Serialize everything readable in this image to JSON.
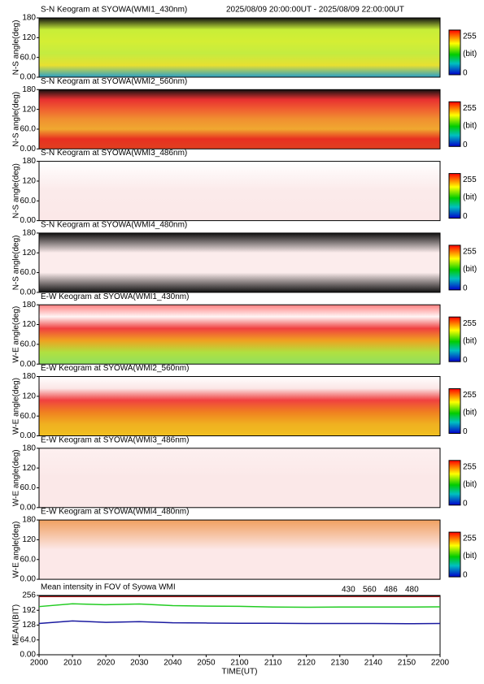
{
  "header": "2025/08/09 20:00:00UT - 2025/08/09 22:00:00UT",
  "keograms": [
    {
      "title": "S-N Keogram at SYOWA(WMI1_430nm)",
      "ylabel": "N-S angle(deg)",
      "ylim": [
        0,
        180
      ],
      "yticks": [
        {
          "value": 0,
          "label": "0.00"
        },
        {
          "value": 60,
          "label": "60.0"
        },
        120,
        180
      ],
      "colorbar": {
        "min": 0,
        "max": 255,
        "unit": "(bit)"
      },
      "gradient": [
        "#111111",
        "#c8ee38",
        "#d4ee34",
        "#c4ec40",
        "#e8e030",
        "#2aa0c8"
      ]
    },
    {
      "title": "S-N Keogram at SYOWA(WMI2_560nm)",
      "ylabel": "N-S angle(deg)",
      "ylim": [
        0,
        180
      ],
      "yticks": [
        {
          "value": 0,
          "label": "0.00"
        },
        {
          "value": 60,
          "label": "60.0"
        },
        120,
        180
      ],
      "colorbar": {
        "min": 0,
        "max": 255,
        "unit": "(bit)"
      },
      "gradient": [
        "#111111",
        "#e83030",
        "#f06030",
        "#f09030",
        "#f0a830",
        "#e83020",
        "#e04020"
      ]
    },
    {
      "title": "S-N Keogram at SYOWA(WMI3_486nm)",
      "ylabel": "N-S angle(deg)",
      "ylim": [
        0,
        180
      ],
      "yticks": [
        {
          "value": 0,
          "label": "0.00"
        },
        {
          "value": 60,
          "label": "60.0"
        },
        120,
        180
      ],
      "colorbar": {
        "min": 0,
        "max": 255,
        "unit": "(bit)"
      },
      "gradient": [
        "#ffffff",
        "#fbeaea",
        "#fbe8e8"
      ]
    },
    {
      "title": "S-N Keogram at SYOWA(WMI4_480nm)",
      "ylabel": "N-S angle(deg)",
      "ylim": [
        0,
        180
      ],
      "yticks": [
        {
          "value": 0,
          "label": "0.00"
        },
        {
          "value": 60,
          "label": "60.0"
        },
        120,
        180
      ],
      "colorbar": {
        "min": 0,
        "max": 255,
        "unit": "(bit)"
      },
      "gradient": [
        "#111111",
        "#fcecec",
        "#fcecec",
        "#111111"
      ]
    },
    {
      "title": "E-W Keogram at SYOWA(WMI1_430nm)",
      "ylabel": "W-E angle(deg)",
      "ylim": [
        0,
        180
      ],
      "yticks": [
        {
          "value": 0,
          "label": "0.00"
        },
        {
          "value": 60,
          "label": "60.0"
        },
        120,
        180
      ],
      "colorbar": {
        "min": 0,
        "max": 255,
        "unit": "(bit)"
      },
      "gradient": [
        "#ff8080",
        "#fff5f5",
        "#f04040",
        "#f0a020",
        "#b0e040",
        "#90e060"
      ]
    },
    {
      "title": "E-W Keogram at SYOWA(WMI2_560nm)",
      "ylabel": "W-E angle(deg)",
      "ylim": [
        0,
        180
      ],
      "yticks": [
        {
          "value": 0,
          "label": "0.00"
        },
        {
          "value": 60,
          "label": "60.0"
        },
        120,
        180
      ],
      "colorbar": {
        "min": 0,
        "max": 255,
        "unit": "(bit)"
      },
      "gradient": [
        "#ffffff",
        "#fbe6e6",
        "#f04040",
        "#f08020",
        "#f0b020",
        "#f0c020"
      ]
    },
    {
      "title": "E-W Keogram at SYOWA(WMI3_486nm)",
      "ylabel": "W-E angle(deg)",
      "ylim": [
        0,
        180
      ],
      "yticks": [
        {
          "value": 0,
          "label": "0.00"
        },
        {
          "value": 60,
          "label": "60.0"
        },
        120,
        180
      ],
      "colorbar": {
        "min": 0,
        "max": 255,
        "unit": "(bit)"
      },
      "gradient": [
        "#fdf0f0",
        "#fbe8e8",
        "#fbe8e8"
      ]
    },
    {
      "title": "E-W Keogram at SYOWA(WMI4_480nm)",
      "ylabel": "W-E angle(deg)",
      "ylim": [
        0,
        180
      ],
      "yticks": [
        {
          "value": 0,
          "label": "0.00"
        },
        {
          "value": 60,
          "label": "60.0"
        },
        120,
        180
      ],
      "colorbar": {
        "min": 0,
        "max": 255,
        "unit": "(bit)"
      },
      "gradient": [
        "#f0a060",
        "#fce8e8",
        "#fce8e8"
      ]
    }
  ],
  "chart_data": {
    "type": "line",
    "title": "Mean intensity in FOV of Syowa WMI",
    "y_label": "MEAN(BIT)",
    "x_label": "TIME(UT)",
    "categories": [
      "2000",
      "2010",
      "2020",
      "2030",
      "2040",
      "2050",
      "2100",
      "2110",
      "2120",
      "2130",
      "2140",
      "2150",
      "2200"
    ],
    "ylim": [
      0,
      256
    ],
    "yticks": [
      {
        "value": 0,
        "label": "0.00"
      },
      {
        "value": 64,
        "label": "64.0"
      },
      128,
      192,
      256
    ],
    "series": [
      {
        "name": "430",
        "color": "#1a1aa0",
        "values": [
          135,
          146,
          140,
          143,
          138,
          137,
          136,
          136,
          135,
          135,
          135,
          134,
          135
        ]
      },
      {
        "name": "560",
        "color": "#22cc22",
        "values": [
          208,
          220,
          216,
          219,
          212,
          210,
          209,
          206,
          205,
          206,
          206,
          206,
          207
        ]
      },
      {
        "name": "486",
        "color": "#b02020",
        "values": [
          251,
          251,
          251,
          251,
          251,
          251,
          251,
          251,
          251,
          251,
          251,
          251,
          251
        ]
      },
      {
        "name": "480",
        "color": "#000000",
        "values": [
          255,
          255,
          255,
          255,
          255,
          255,
          255,
          255,
          255,
          255,
          255,
          255,
          255
        ]
      }
    ]
  }
}
